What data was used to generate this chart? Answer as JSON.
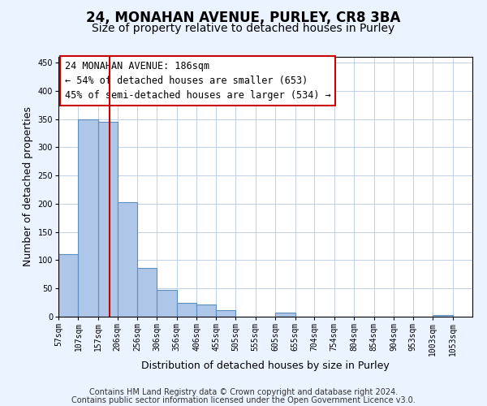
{
  "title": "24, MONAHAN AVENUE, PURLEY, CR8 3BA",
  "subtitle": "Size of property relative to detached houses in Purley",
  "xlabel": "Distribution of detached houses by size in Purley",
  "ylabel": "Number of detached properties",
  "bar_left_edges": [
    57,
    107,
    157,
    206,
    256,
    306,
    356,
    406,
    455,
    505,
    555,
    605,
    655,
    704,
    754,
    804,
    854,
    904,
    953,
    1003
  ],
  "bar_heights": [
    110,
    350,
    345,
    203,
    86,
    47,
    25,
    22,
    12,
    0,
    0,
    7,
    0,
    0,
    0,
    0,
    0,
    0,
    0,
    3
  ],
  "bar_widths": [
    50,
    50,
    49,
    50,
    50,
    50,
    50,
    49,
    50,
    50,
    50,
    50,
    49,
    50,
    50,
    50,
    50,
    49,
    50,
    50
  ],
  "tick_labels": [
    "57sqm",
    "107sqm",
    "157sqm",
    "206sqm",
    "256sqm",
    "306sqm",
    "356sqm",
    "406sqm",
    "455sqm",
    "505sqm",
    "555sqm",
    "605sqm",
    "655sqm",
    "704sqm",
    "754sqm",
    "804sqm",
    "854sqm",
    "904sqm",
    "953sqm",
    "1003sqm",
    "1053sqm"
  ],
  "bar_color": "#aec6e8",
  "bar_edge_color": "#5a8fc0",
  "property_line_x": 186,
  "property_line_color": "#cc0000",
  "annotation_line1": "24 MONAHAN AVENUE: 186sqm",
  "annotation_line2": "← 54% of detached houses are smaller (653)",
  "annotation_line3": "45% of semi-detached houses are larger (534) →",
  "ylim": [
    0,
    460
  ],
  "xlim": [
    57,
    1103
  ],
  "yticks": [
    0,
    50,
    100,
    150,
    200,
    250,
    300,
    350,
    400,
    450
  ],
  "footer_line1": "Contains HM Land Registry data © Crown copyright and database right 2024.",
  "footer_line2": "Contains public sector information licensed under the Open Government Licence v3.0.",
  "bg_color": "#eaf3ff",
  "plot_bg_color": "#ffffff",
  "title_fontsize": 12,
  "subtitle_fontsize": 10,
  "axis_label_fontsize": 9,
  "tick_fontsize": 7,
  "annotation_fontsize": 8.5,
  "footer_fontsize": 7
}
